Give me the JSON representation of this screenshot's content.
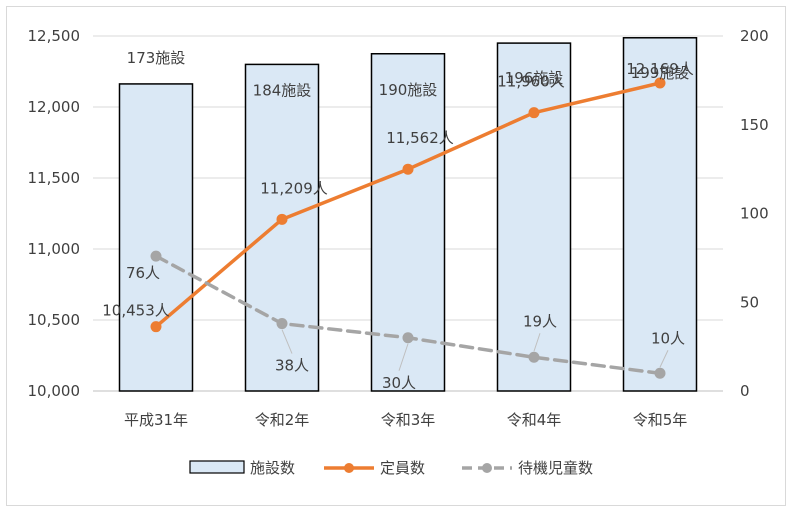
{
  "chart_data": {
    "type": "bar",
    "categories": [
      "平成31年",
      "令和2年",
      "令和3年",
      "令和4年",
      "令和5年"
    ],
    "ylim_left": [
      10000,
      12500
    ],
    "ylim_right": [
      0,
      200
    ],
    "left_ticks": [
      "10,000",
      "10,500",
      "11,000",
      "11,500",
      "12,000",
      "12,500"
    ],
    "right_ticks": [
      "0",
      "50",
      "100",
      "150",
      "200"
    ],
    "grid": true,
    "legend_position": "bottom",
    "series": [
      {
        "name": "施設数",
        "kind": "bar",
        "axis": "right",
        "color": "#dae8f5",
        "values": [
          173,
          184,
          190,
          196,
          199
        ],
        "labels": [
          "173施設",
          "184施設",
          "190施設",
          "196施設",
          "199施設"
        ]
      },
      {
        "name": "定員数",
        "kind": "line",
        "axis": "left",
        "color": "#ed7d31",
        "values": [
          10453,
          11209,
          11562,
          11960,
          12169
        ],
        "labels": [
          "10,453人",
          "11,209人",
          "11,562人",
          "11,960人",
          "12,169人"
        ]
      },
      {
        "name": "待機児童数",
        "kind": "line-dashed",
        "axis": "right",
        "color": "#a5a5a5",
        "values": [
          76,
          38,
          30,
          19,
          10
        ],
        "labels": [
          "76人",
          "38人",
          "30人",
          "19人",
          "10人"
        ]
      }
    ]
  }
}
